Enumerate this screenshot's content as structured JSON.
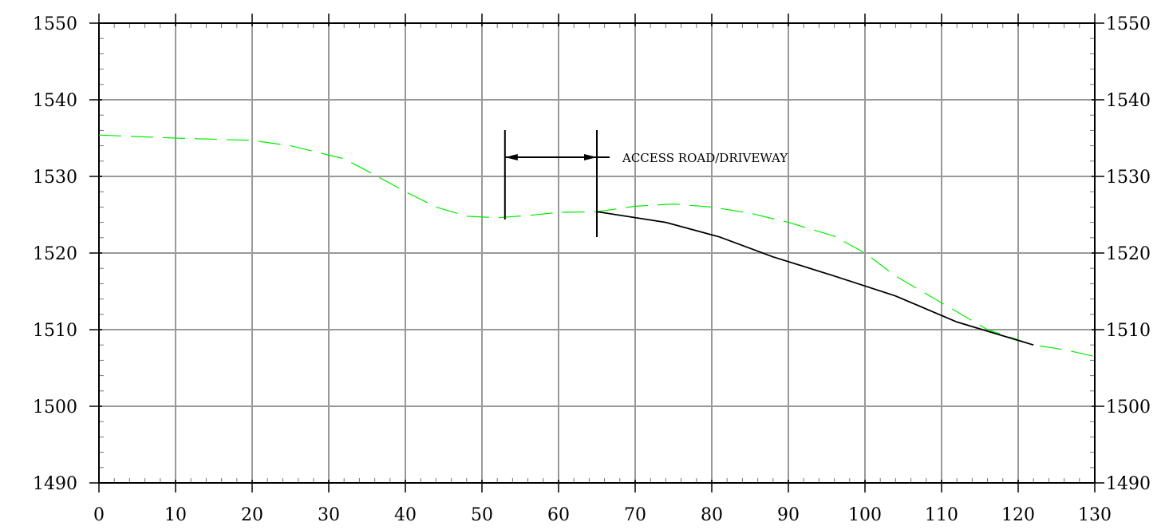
{
  "chart_data": {
    "type": "line",
    "title": "",
    "xlabel": "",
    "ylabel": "",
    "xlim": [
      0,
      130
    ],
    "ylim": [
      1490,
      1550
    ],
    "x_ticks": [
      "0",
      "10",
      "20",
      "30",
      "40",
      "50",
      "60",
      "70",
      "80",
      "90",
      "100",
      "110",
      "120",
      "130"
    ],
    "y_ticks": [
      "1550",
      "1540",
      "1530",
      "1520",
      "1510",
      "1500",
      "1490"
    ],
    "grid": true,
    "legend": "none",
    "series": [
      {
        "color": "#00ee00",
        "style": "dashed",
        "points": [
          [
            0,
            1535.4
          ],
          [
            10,
            1535.0
          ],
          [
            20,
            1534.7
          ],
          [
            25,
            1534.0
          ],
          [
            32,
            1532.3
          ],
          [
            36,
            1530.2
          ],
          [
            40,
            1528.0
          ],
          [
            44,
            1526.0
          ],
          [
            48,
            1524.8
          ],
          [
            52,
            1524.6
          ],
          [
            56,
            1524.9
          ],
          [
            60,
            1525.3
          ],
          [
            65,
            1525.4
          ],
          [
            70,
            1526.1
          ],
          [
            75,
            1526.4
          ],
          [
            80,
            1526.0
          ],
          [
            85,
            1525.2
          ],
          [
            90,
            1524.0
          ],
          [
            96,
            1522.2
          ],
          [
            100,
            1520.0
          ],
          [
            104,
            1517.0
          ],
          [
            110,
            1513.5
          ],
          [
            116,
            1510.0
          ],
          [
            122,
            1508.0
          ],
          [
            126,
            1507.4
          ],
          [
            130,
            1506.5
          ]
        ]
      },
      {
        "color": "#000000",
        "style": "solid",
        "points": [
          [
            65,
            1525.4
          ],
          [
            74,
            1524.0
          ],
          [
            81,
            1522.1
          ],
          [
            88,
            1519.5
          ],
          [
            96,
            1517.0
          ],
          [
            104,
            1514.4
          ],
          [
            112,
            1511.0
          ],
          [
            122,
            1508.0
          ]
        ]
      }
    ],
    "annotations": [
      {
        "text": "ACCESS ROAD/DRIVEWAY",
        "x_start": 53,
        "x_end": 65,
        "y": 1532.5
      }
    ]
  }
}
